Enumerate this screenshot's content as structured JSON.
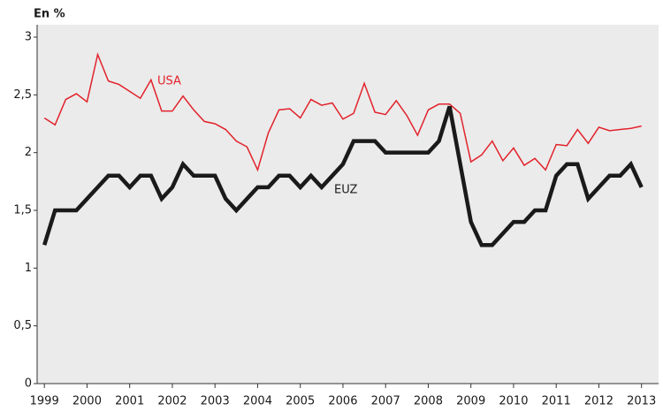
{
  "chart_data": {
    "type": "line",
    "title": "En %",
    "x": [
      1999,
      1999.25,
      1999.5,
      1999.75,
      2000,
      2000.25,
      2000.5,
      2000.75,
      2001,
      2001.25,
      2001.5,
      2001.75,
      2002,
      2002.25,
      2002.5,
      2002.75,
      2003,
      2003.25,
      2003.5,
      2003.75,
      2004,
      2004.25,
      2004.5,
      2004.75,
      2005,
      2005.25,
      2005.5,
      2005.75,
      2006,
      2006.25,
      2006.5,
      2006.75,
      2007,
      2007.25,
      2007.5,
      2007.75,
      2008,
      2008.25,
      2008.5,
      2008.75,
      2009,
      2009.25,
      2009.5,
      2009.75,
      2010,
      2010.25,
      2010.5,
      2010.75,
      2011,
      2011.25,
      2011.5,
      2011.75,
      2012,
      2012.25,
      2012.5,
      2012.75,
      2013
    ],
    "series": [
      {
        "name": "USA",
        "color": "#e2222b",
        "values": [
          2.3,
          2.24,
          2.46,
          2.51,
          2.44,
          2.85,
          2.62,
          2.59,
          2.53,
          2.47,
          2.63,
          2.36,
          2.36,
          2.49,
          2.37,
          2.27,
          2.25,
          2.2,
          2.1,
          2.05,
          1.85,
          2.17,
          2.37,
          2.38,
          2.3,
          2.46,
          2.41,
          2.43,
          2.29,
          2.34,
          2.6,
          2.35,
          2.33,
          2.45,
          2.32,
          2.15,
          2.37,
          2.42,
          2.42,
          2.34,
          1.92,
          1.98,
          2.1,
          1.93,
          2.04,
          1.89,
          1.95,
          1.85,
          2.07,
          2.06,
          2.2,
          2.08,
          2.22,
          2.19,
          2.2,
          2.21,
          2.23
        ]
      },
      {
        "name": "EUZ",
        "color": "#1a1a1a",
        "values": [
          1.2,
          1.5,
          1.5,
          1.5,
          1.6,
          1.7,
          1.8,
          1.8,
          1.7,
          1.8,
          1.8,
          1.6,
          1.7,
          1.9,
          1.8,
          1.8,
          1.8,
          1.6,
          1.5,
          1.6,
          1.7,
          1.7,
          1.8,
          1.8,
          1.7,
          1.8,
          1.7,
          1.8,
          1.9,
          2.1,
          2.1,
          2.1,
          2.0,
          2.0,
          2.0,
          2.0,
          2.0,
          2.1,
          2.4,
          1.9,
          1.4,
          1.2,
          1.2,
          1.3,
          1.4,
          1.4,
          1.5,
          1.5,
          1.8,
          1.9,
          1.9,
          1.6,
          1.7,
          1.8,
          1.8,
          1.9,
          1.7
        ]
      }
    ],
    "xlim": [
      1998.83,
      2013.4
    ],
    "xticks": [
      1999,
      2000,
      2001,
      2002,
      2003,
      2004,
      2005,
      2006,
      2007,
      2008,
      2009,
      2010,
      2011,
      2012,
      2013
    ],
    "ylim": [
      0,
      3
    ],
    "yticks": [
      0,
      {
        "value": 0.5,
        "label": "0,5"
      },
      1,
      {
        "value": 1.5,
        "label": "1,5"
      },
      2,
      {
        "value": 2.5,
        "label": "2,5"
      },
      3
    ],
    "grid": false,
    "background": "#ebebeb"
  }
}
